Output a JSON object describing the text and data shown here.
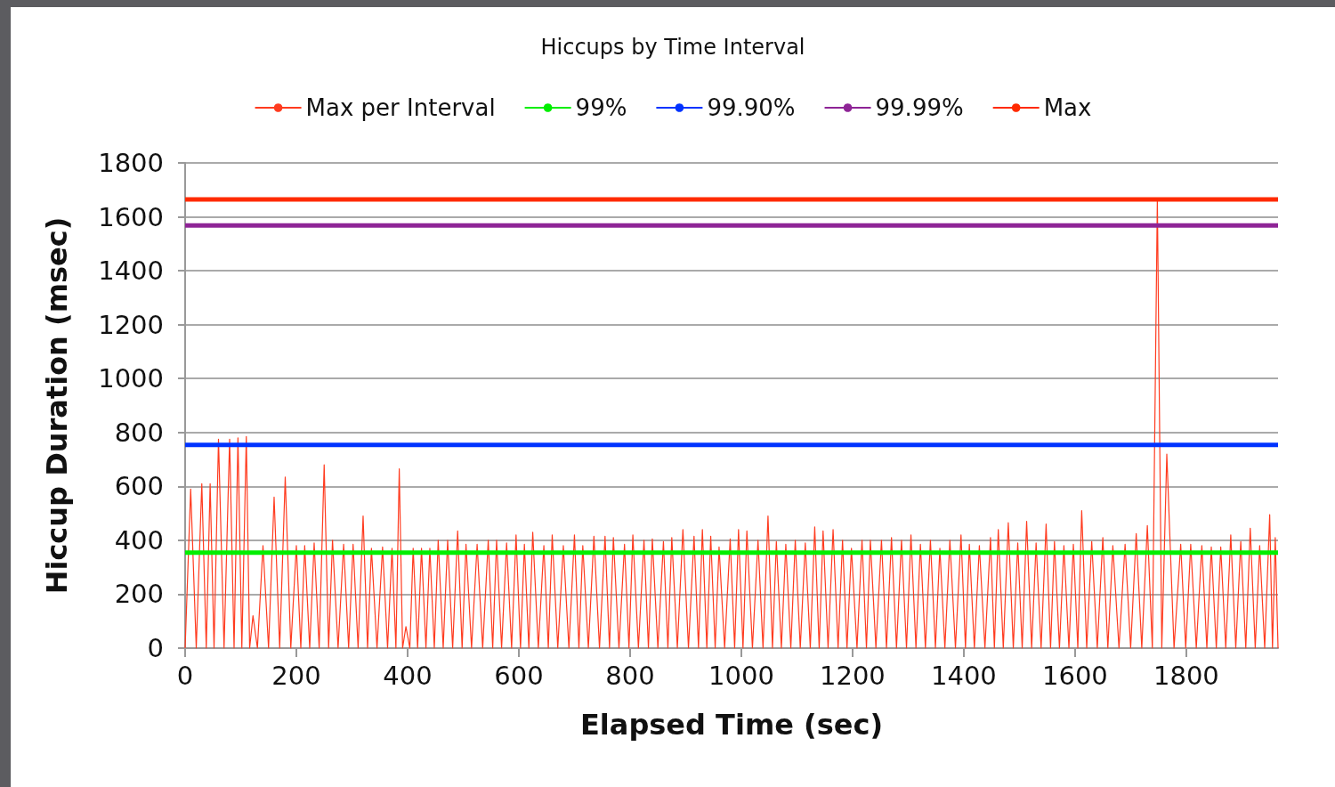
{
  "chart_data": {
    "type": "line",
    "title": "Hiccups by Time Interval",
    "xlabel": "Elapsed Time (sec)",
    "ylabel": "Hiccup Duration (msec)",
    "xlim": [
      0,
      1965
    ],
    "xticks": [
      0,
      200,
      400,
      600,
      800,
      1000,
      1200,
      1400,
      1600,
      1800
    ],
    "ylim": [
      0,
      1800
    ],
    "yticks": [
      0,
      200,
      400,
      600,
      800,
      1000,
      1200,
      1400,
      1600,
      1800
    ],
    "grid": "y",
    "legend": "top",
    "marker": "none",
    "line_style": "solid",
    "series": [
      {
        "name": "Max per Interval",
        "color": "#ff3b1f",
        "x": [
          0,
          10,
          20,
          30,
          38,
          45,
          52,
          60,
          70,
          80,
          88,
          95,
          102,
          110,
          116,
          122,
          130,
          140,
          150,
          160,
          170,
          180,
          190,
          200,
          208,
          215,
          224,
          232,
          241,
          250,
          258,
          265,
          275,
          285,
          294,
          302,
          311,
          320,
          328,
          335,
          345,
          355,
          364,
          372,
          379,
          385,
          391,
          397,
          404,
          410,
          418,
          425,
          433,
          440,
          448,
          455,
          464,
          472,
          481,
          490,
          498,
          505,
          515,
          525,
          535,
          545,
          553,
          560,
          569,
          578,
          587,
          595,
          603,
          610,
          618,
          625,
          635,
          645,
          653,
          660,
          670,
          680,
          690,
          700,
          708,
          715,
          725,
          735,
          745,
          755,
          763,
          770,
          780,
          790,
          798,
          805,
          815,
          825,
          833,
          840,
          850,
          860,
          868,
          875,
          885,
          895,
          905,
          915,
          923,
          930,
          938,
          945,
          953,
          960,
          970,
          980,
          988,
          995,
          1003,
          1010,
          1020,
          1030,
          1039,
          1048,
          1056,
          1063,
          1072,
          1080,
          1089,
          1097,
          1106,
          1115,
          1124,
          1132,
          1140,
          1147,
          1156,
          1165,
          1174,
          1182,
          1190,
          1198,
          1208,
          1217,
          1225,
          1232,
          1242,
          1252,
          1261,
          1270,
          1279,
          1288,
          1297,
          1305,
          1314,
          1322,
          1331,
          1340,
          1349,
          1357,
          1366,
          1375,
          1385,
          1395,
          1403,
          1410,
          1419,
          1428,
          1438,
          1448,
          1455,
          1462,
          1471,
          1480,
          1489,
          1497,
          1505,
          1513,
          1522,
          1530,
          1539,
          1548,
          1556,
          1563,
          1572,
          1580,
          1589,
          1597,
          1605,
          1612,
          1621,
          1630,
          1640,
          1650,
          1659,
          1668,
          1679,
          1690,
          1700,
          1710,
          1720,
          1730,
          1739,
          1748,
          1756,
          1765,
          1778,
          1790,
          1799,
          1808,
          1818,
          1828,
          1837,
          1845,
          1854,
          1862,
          1871,
          1880,
          1889,
          1898,
          1907,
          1915,
          1924,
          1932,
          1941,
          1950,
          1955,
          1960,
          1965
        ],
        "values": [
          0,
          590,
          0,
          610,
          0,
          610,
          0,
          775,
          0,
          775,
          0,
          780,
          0,
          785,
          0,
          120,
          0,
          380,
          0,
          560,
          0,
          635,
          0,
          380,
          0,
          380,
          0,
          390,
          0,
          680,
          0,
          400,
          0,
          385,
          0,
          385,
          0,
          490,
          0,
          370,
          0,
          375,
          0,
          370,
          0,
          665,
          0,
          80,
          0,
          370,
          0,
          370,
          0,
          370,
          0,
          400,
          0,
          400,
          0,
          435,
          0,
          385,
          0,
          385,
          0,
          400,
          0,
          400,
          0,
          390,
          0,
          420,
          0,
          385,
          0,
          430,
          0,
          380,
          0,
          420,
          0,
          380,
          0,
          420,
          0,
          380,
          0,
          415,
          0,
          415,
          0,
          410,
          0,
          385,
          0,
          420,
          0,
          400,
          0,
          405,
          0,
          395,
          0,
          410,
          0,
          440,
          0,
          415,
          0,
          440,
          0,
          415,
          0,
          375,
          0,
          405,
          0,
          440,
          0,
          435,
          0,
          400,
          0,
          490,
          0,
          395,
          0,
          385,
          0,
          400,
          0,
          390,
          0,
          450,
          0,
          435,
          0,
          440,
          0,
          400,
          0,
          370,
          0,
          400,
          0,
          400,
          0,
          400,
          0,
          410,
          0,
          400,
          0,
          420,
          0,
          385,
          0,
          400,
          0,
          370,
          0,
          400,
          0,
          420,
          0,
          385,
          0,
          380,
          0,
          410,
          0,
          440,
          0,
          465,
          0,
          390,
          0,
          470,
          0,
          390,
          0,
          460,
          0,
          395,
          0,
          380,
          0,
          385,
          0,
          510,
          0,
          395,
          0,
          410,
          0,
          380,
          0,
          385,
          0,
          425,
          0,
          455,
          0,
          1665,
          0,
          720,
          0,
          385,
          0,
          385,
          0,
          380,
          0,
          375,
          0,
          375,
          0,
          420,
          0,
          395,
          0,
          445,
          0,
          380,
          0,
          495,
          0,
          410,
          0
        ]
      },
      {
        "name": "99%",
        "color": "#00ee00",
        "x": [
          0,
          1965
        ],
        "values": [
          354,
          354
        ]
      },
      {
        "name": "99.90%",
        "color": "#0033ff",
        "x": [
          0,
          1965
        ],
        "values": [
          754,
          754
        ]
      },
      {
        "name": "99.99%",
        "color": "#8e2496",
        "x": [
          0,
          1965
        ],
        "values": [
          1568,
          1568
        ]
      },
      {
        "name": "Max",
        "color": "#ff2a00",
        "x": [
          0,
          1965
        ],
        "values": [
          1665,
          1665
        ]
      }
    ]
  }
}
